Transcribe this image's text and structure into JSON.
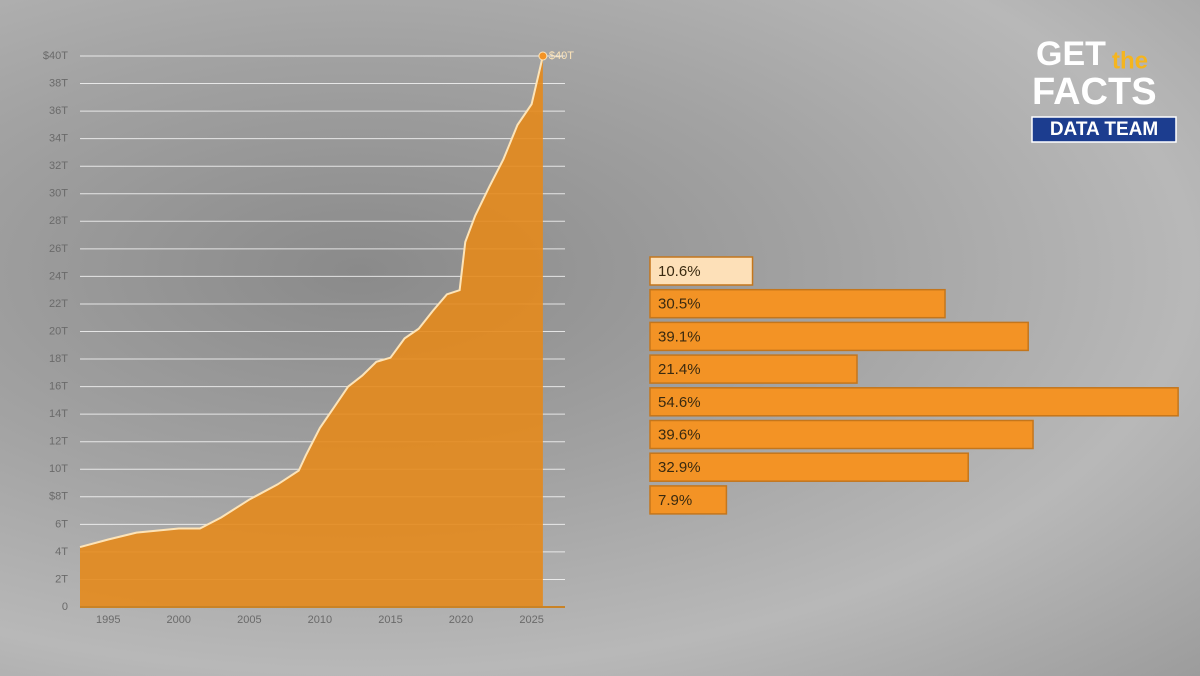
{
  "chart_data": [
    {
      "type": "area",
      "x": [
        1993,
        1995,
        1997,
        2000,
        2001.5,
        2003,
        2005,
        2007,
        2008.5,
        2009,
        2010,
        2011,
        2012,
        2013,
        2014,
        2015,
        2016,
        2017,
        2018,
        2019,
        2019.9,
        2020.3,
        2021,
        2022,
        2023,
        2024,
        2025,
        2025.8
      ],
      "series": [
        {
          "color": "#e48a1c",
          "values": [
            4.35,
            4.9,
            5.4,
            5.7,
            5.7,
            6.5,
            7.8,
            8.9,
            9.9,
            11.0,
            13.0,
            14.5,
            16.0,
            16.8,
            17.8,
            18.1,
            19.5,
            20.2,
            21.5,
            22.7,
            23.0,
            26.5,
            28.4,
            30.5,
            32.5,
            35.0,
            36.5,
            40.0
          ]
        }
      ],
      "annotation": "$40T",
      "xlim": [
        1993,
        2026.8
      ],
      "xticks": [
        1995,
        2000,
        2005,
        2010,
        2015,
        2020,
        2025
      ],
      "ylim": [
        0,
        40
      ],
      "yticks": [
        0,
        {
          "value": 2,
          "label": "2T"
        },
        {
          "value": 4,
          "label": "4T"
        },
        {
          "value": 6,
          "label": "6T"
        },
        {
          "value": 8,
          "label": "$8T"
        },
        {
          "value": 10,
          "label": "10T"
        },
        {
          "value": 12,
          "label": "12T"
        },
        {
          "value": 14,
          "label": "14T"
        },
        {
          "value": 16,
          "label": "16T"
        },
        {
          "value": 18,
          "label": "18T"
        },
        {
          "value": 20,
          "label": "20T"
        },
        {
          "value": 22,
          "label": "22T"
        },
        {
          "value": 24,
          "label": "24T"
        },
        {
          "value": 26,
          "label": "26T"
        },
        {
          "value": 28,
          "label": "28T"
        },
        {
          "value": 30,
          "label": "30T"
        },
        {
          "value": 32,
          "label": "32T"
        },
        {
          "value": 34,
          "label": "34T"
        },
        {
          "value": 36,
          "label": "36T"
        },
        {
          "value": 38,
          "label": "38T"
        },
        {
          "value": 40,
          "label": "$40T"
        }
      ],
      "grid": true
    },
    {
      "type": "hbar",
      "values": [
        10.6,
        30.5,
        39.1,
        21.4,
        54.6,
        39.6,
        32.9,
        7.9
      ],
      "value_labels": [
        "10.6%",
        "30.5%",
        "39.1%",
        "21.4%",
        "54.6%",
        "39.6%",
        "32.9%",
        "7.9%"
      ],
      "colors": [
        "#fde0b8",
        "#f39325",
        "#f39325",
        "#f39325",
        "#f39325",
        "#f39325",
        "#f39325",
        "#f39325"
      ],
      "xlim": [
        0,
        55
      ]
    }
  ],
  "logo": {
    "line1": "GET",
    "small": "the",
    "line2": "FACTS",
    "badge": "DATA TEAM"
  }
}
